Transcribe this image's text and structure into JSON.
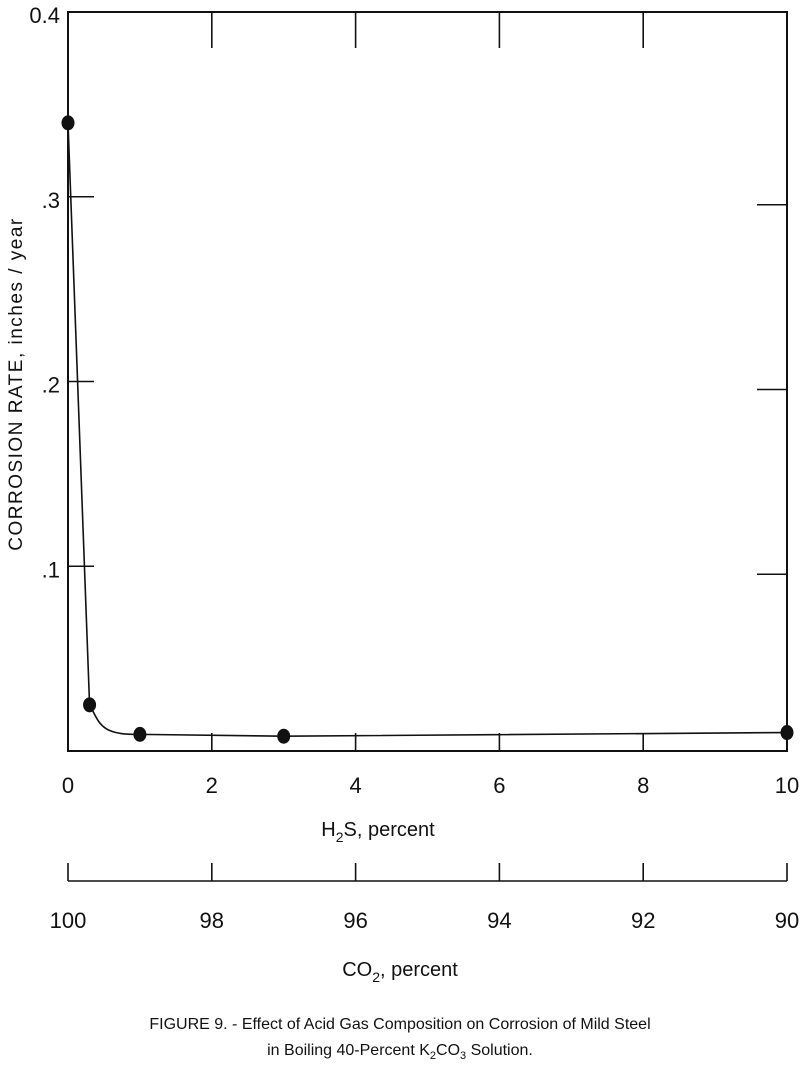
{
  "chart_data": {
    "type": "line",
    "xlabel": {
      "main": "H",
      "sub": "2",
      "rest": "S, percent"
    },
    "secondary_xlabel": {
      "main": "CO",
      "sub": "2",
      "rest": ", percent"
    },
    "ylabel": "CORROSION RATE, inches / year",
    "xlim": [
      0,
      10
    ],
    "ylim": [
      0,
      0.4
    ],
    "x_ticks": [
      0,
      2,
      4,
      6,
      8,
      10
    ],
    "x_tick_labels": [
      "0",
      "2",
      "4",
      "6",
      "8",
      "10"
    ],
    "secondary_x_ticks": [
      0,
      2,
      4,
      6,
      8,
      10
    ],
    "secondary_x_tick_labels": [
      "100",
      "98",
      "96",
      "94",
      "92",
      "90"
    ],
    "y_ticks": [
      0.1,
      0.2,
      0.3,
      0.4
    ],
    "y_tick_labels": [
      ".1",
      ".2",
      ".3",
      "0.4"
    ],
    "grid": false,
    "series": [
      {
        "points": [
          {
            "x": 0,
            "y": 0.34
          },
          {
            "x": 0.3,
            "y": 0.025
          },
          {
            "x": 1,
            "y": 0.009
          },
          {
            "x": 3,
            "y": 0.008
          },
          {
            "x": 10,
            "y": 0.01
          }
        ],
        "color": "#111111"
      }
    ]
  },
  "caption": {
    "line1": "FIGURE 9. - Effect of Acid Gas Composition on Corrosion of Mild Steel",
    "line2_pre": "in Boiling 40-Percent K",
    "line2_sub1": "2",
    "line2_mid": "CO",
    "line2_sub2": "3",
    "line2_post": " Solution."
  }
}
